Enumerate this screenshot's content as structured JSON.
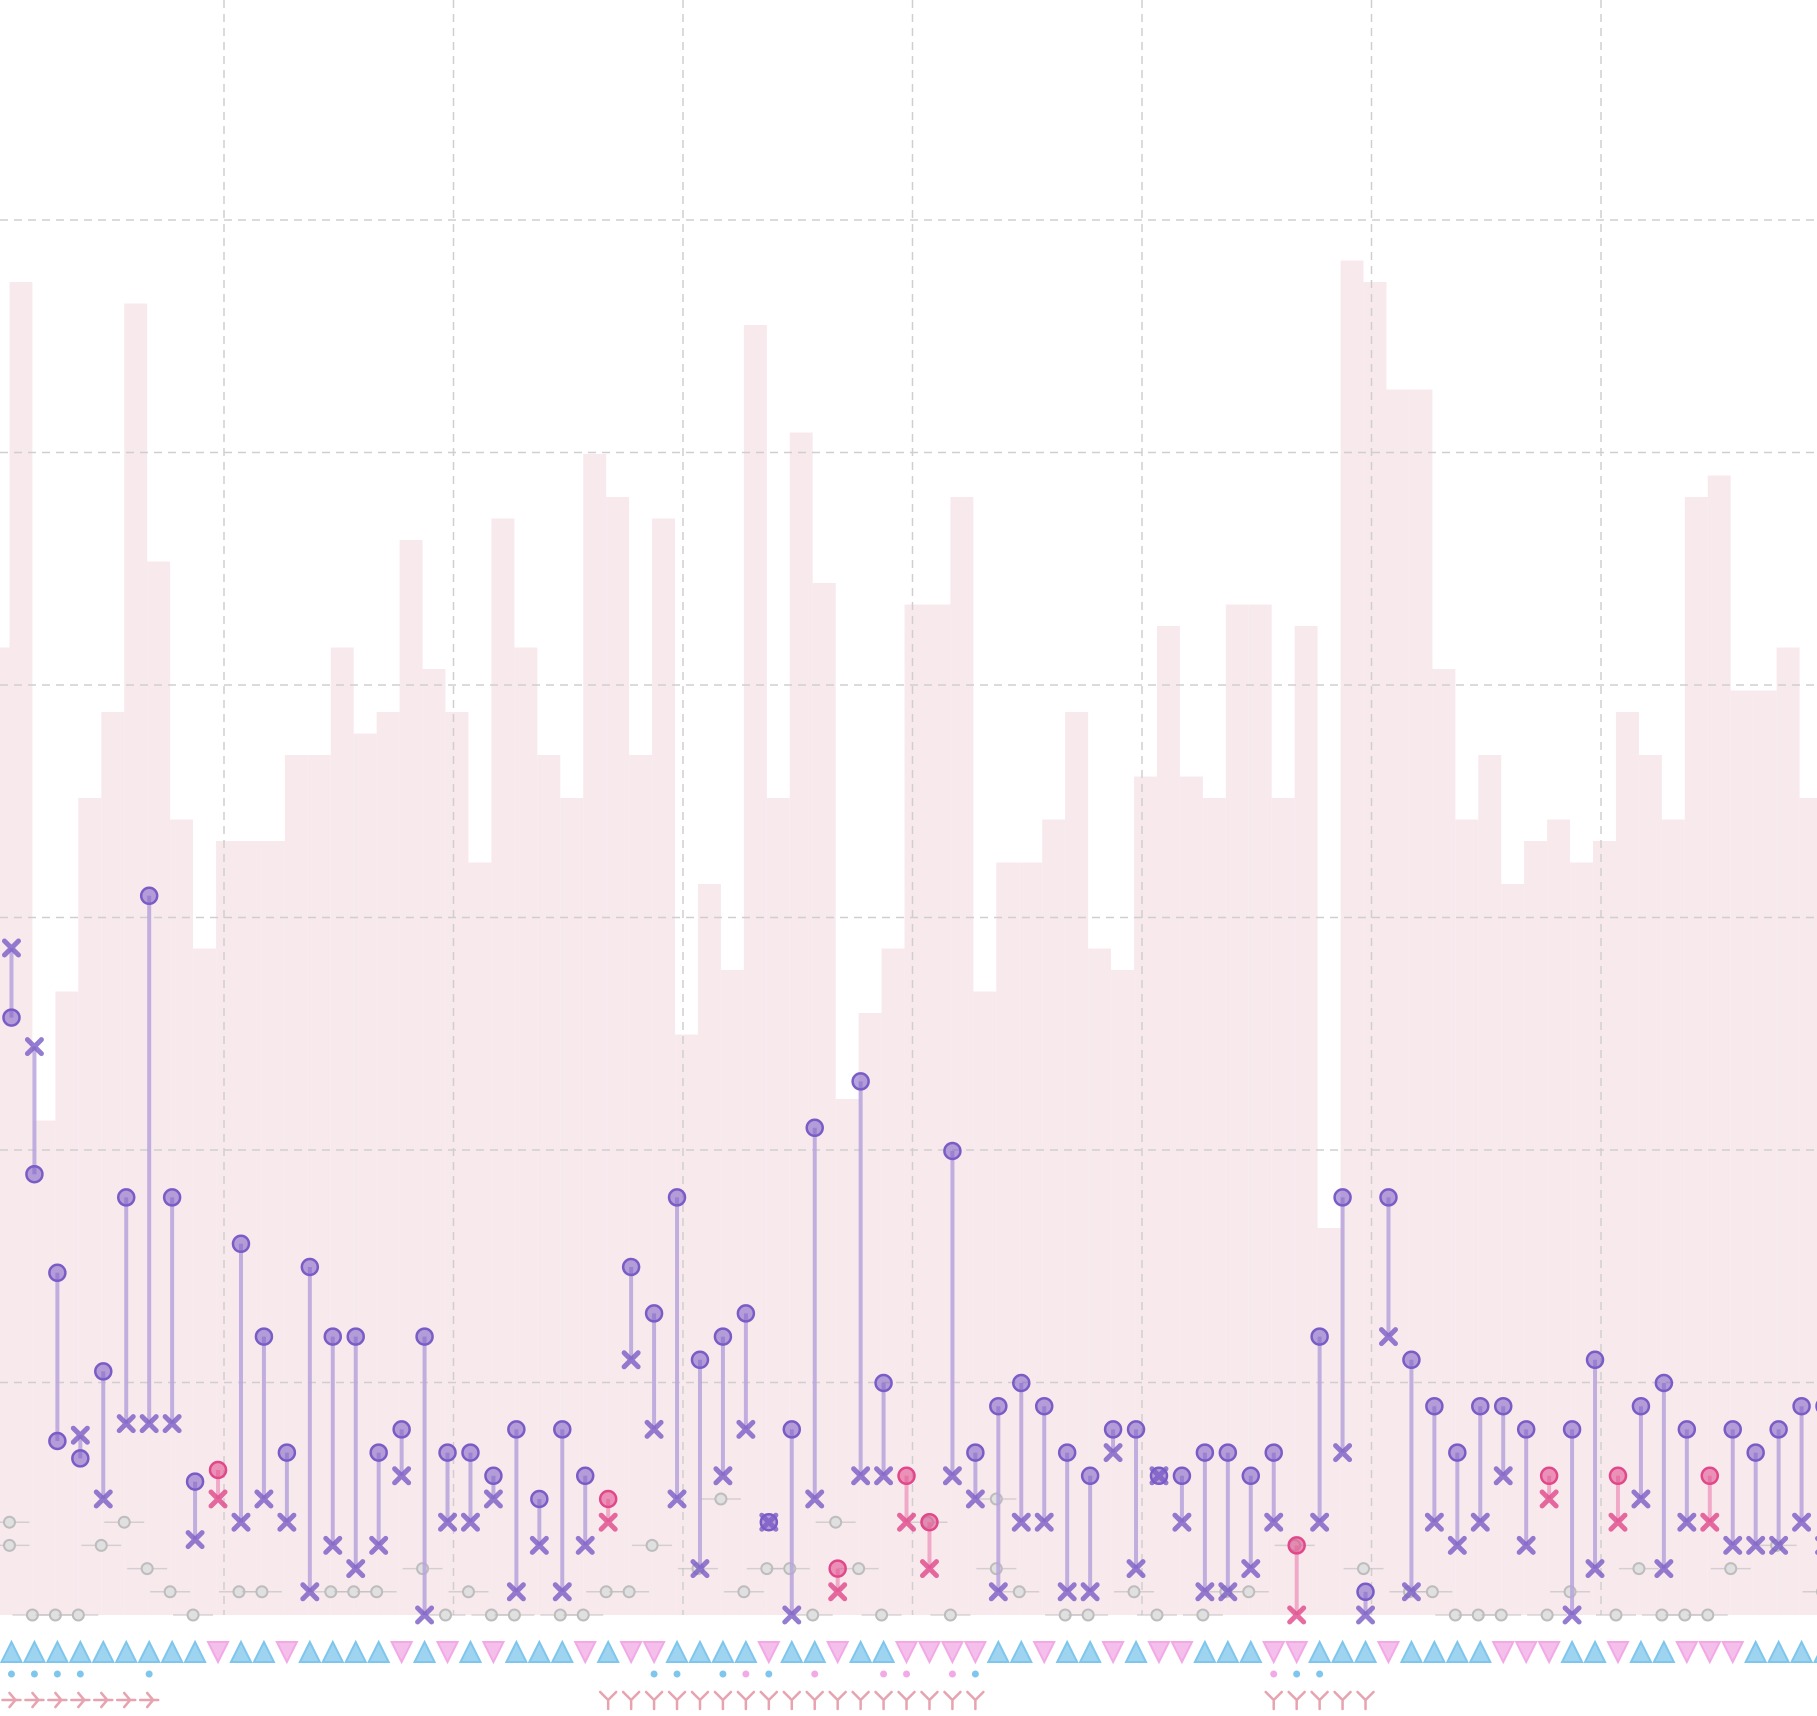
{
  "chart_data": {
    "type": "bar",
    "description_note": "",
    "x_count": 80,
    "grid": "on",
    "colors": {
      "background_bars": "#f8e9ed",
      "grid": "#cfcfcf",
      "purple_series": "#7a5cc6",
      "purple_line": "#b8a4dc",
      "pink_series": "#e0488a",
      "pink_line": "#efa0c2",
      "grey_series": "#bdbdbd",
      "triangle_blue": "#7fc6ec",
      "triangle_pink": "#f2a9e6",
      "dot_blue": "#7fc6ec",
      "dot_pink": "#f2a9e6",
      "tick_marks": "#e7a3b0"
    },
    "background_bars": [
      45,
      62,
      23,
      29,
      38,
      42,
      61,
      49,
      37,
      31,
      36,
      36,
      36,
      40,
      40,
      45,
      41,
      42,
      50,
      44,
      42,
      35,
      51,
      45,
      40,
      38,
      54,
      52,
      40,
      51,
      27,
      34,
      30,
      60,
      38,
      55,
      48,
      24,
      28,
      31,
      47,
      47,
      52,
      29,
      35,
      35,
      37,
      42,
      31,
      30,
      39,
      46,
      39,
      38,
      47,
      47,
      38,
      46,
      18,
      63,
      62,
      57,
      57,
      44,
      37,
      40,
      34,
      36,
      37,
      35,
      36,
      42,
      40,
      37,
      52,
      53,
      43,
      43,
      45,
      38
    ],
    "stems": [
      {
        "x": 0,
        "top": 1030,
        "bottom": 1150,
        "series": "purple"
      },
      {
        "x": 1,
        "top": 760,
        "bottom": 980,
        "series": "purple"
      },
      {
        "x": 2,
        "top": 590,
        "bottom": 300,
        "series": "purple",
        "bottom_shape": "circle"
      },
      {
        "x": 3,
        "top": 270,
        "bottom": 310,
        "series": "purple"
      },
      {
        "x": 4,
        "top": 420,
        "bottom": 200,
        "series": "purple",
        "bottom_shape": "x"
      },
      {
        "x": 5,
        "top": 720,
        "bottom": 330,
        "series": "purple"
      },
      {
        "x": 6,
        "top": 1240,
        "bottom": 330,
        "series": "purple"
      },
      {
        "x": 7,
        "top": 720,
        "bottom": 330,
        "series": "purple"
      },
      {
        "x": 8,
        "top": 230,
        "bottom": 130,
        "series": "purple"
      },
      {
        "x": 9,
        "top": 200,
        "bottom": 250,
        "series": "pink"
      },
      {
        "x": 10,
        "top": 640,
        "bottom": 160,
        "series": "purple"
      },
      {
        "x": 11,
        "top": 480,
        "bottom": 200,
        "series": "purple"
      },
      {
        "x": 12,
        "top": 280,
        "bottom": 160,
        "series": "purple"
      },
      {
        "x": 13,
        "top": 600,
        "bottom": 40,
        "series": "purple"
      },
      {
        "x": 14,
        "top": 480,
        "bottom": 120,
        "series": "purple"
      },
      {
        "x": 15,
        "top": 480,
        "bottom": 80,
        "series": "purple"
      },
      {
        "x": 16,
        "top": 280,
        "bottom": 120,
        "series": "purple"
      },
      {
        "x": 17,
        "top": 320,
        "bottom": 240,
        "series": "purple"
      },
      {
        "x": 18,
        "top": 480,
        "bottom": 0,
        "series": "purple"
      },
      {
        "x": 19,
        "top": 280,
        "bottom": 160,
        "series": "purple"
      },
      {
        "x": 20,
        "top": 280,
        "bottom": 160,
        "series": "purple"
      },
      {
        "x": 21,
        "top": 240,
        "bottom": 200,
        "series": "purple"
      },
      {
        "x": 22,
        "top": 320,
        "bottom": 40,
        "series": "purple"
      },
      {
        "x": 23,
        "top": 200,
        "bottom": 120,
        "series": "purple"
      },
      {
        "x": 24,
        "top": 320,
        "bottom": 40,
        "series": "purple"
      },
      {
        "x": 25,
        "top": 240,
        "bottom": 120,
        "series": "purple"
      },
      {
        "x": 26,
        "top": 160,
        "bottom": 200,
        "series": "pink"
      },
      {
        "x": 27,
        "top": 600,
        "bottom": 440,
        "series": "purple"
      },
      {
        "x": 28,
        "top": 520,
        "bottom": 320,
        "series": "purple"
      },
      {
        "x": 29,
        "top": 720,
        "bottom": 200,
        "series": "purple"
      },
      {
        "x": 30,
        "top": 440,
        "bottom": 80,
        "series": "purple"
      },
      {
        "x": 31,
        "top": 480,
        "bottom": 240,
        "series": "purple"
      },
      {
        "x": 32,
        "top": 520,
        "bottom": 320,
        "series": "purple"
      },
      {
        "x": 33,
        "top": 160,
        "bottom": 160,
        "series": "purple"
      },
      {
        "x": 34,
        "top": 320,
        "bottom": 0,
        "series": "purple"
      },
      {
        "x": 35,
        "top": 840,
        "bottom": 200,
        "series": "purple"
      },
      {
        "x": 36,
        "top": 40,
        "bottom": 80,
        "series": "pink"
      },
      {
        "x": 37,
        "top": 920,
        "bottom": 240,
        "series": "purple"
      },
      {
        "x": 38,
        "top": 400,
        "bottom": 240,
        "series": "purple"
      },
      {
        "x": 39,
        "top": 160,
        "bottom": 240,
        "series": "pink"
      },
      {
        "x": 40,
        "top": 80,
        "bottom": 160,
        "series": "pink"
      },
      {
        "x": 41,
        "top": 800,
        "bottom": 240,
        "series": "purple"
      },
      {
        "x": 42,
        "top": 280,
        "bottom": 200,
        "series": "purple"
      },
      {
        "x": 43,
        "top": 360,
        "bottom": 40,
        "series": "purple"
      },
      {
        "x": 44,
        "top": 400,
        "bottom": 160,
        "series": "purple"
      },
      {
        "x": 45,
        "top": 360,
        "bottom": 160,
        "series": "purple"
      },
      {
        "x": 46,
        "top": 280,
        "bottom": 40,
        "series": "purple"
      },
      {
        "x": 47,
        "top": 240,
        "bottom": 40,
        "series": "purple"
      },
      {
        "x": 48,
        "top": 320,
        "bottom": 280,
        "series": "purple"
      },
      {
        "x": 49,
        "top": 320,
        "bottom": 80,
        "series": "purple"
      },
      {
        "x": 50,
        "top": 240,
        "bottom": 240,
        "series": "purple"
      },
      {
        "x": 51,
        "top": 240,
        "bottom": 160,
        "series": "purple"
      },
      {
        "x": 52,
        "top": 280,
        "bottom": 40,
        "series": "purple"
      },
      {
        "x": 53,
        "top": 280,
        "bottom": 40,
        "series": "purple"
      },
      {
        "x": 54,
        "top": 240,
        "bottom": 80,
        "series": "purple"
      },
      {
        "x": 55,
        "top": 280,
        "bottom": 160,
        "series": "purple"
      },
      {
        "x": 56,
        "top": 0,
        "bottom": 120,
        "series": "pink"
      },
      {
        "x": 57,
        "top": 480,
        "bottom": 160,
        "series": "purple"
      },
      {
        "x": 58,
        "top": 720,
        "bottom": 280,
        "series": "purple"
      },
      {
        "x": 59,
        "top": 40,
        "bottom": 0,
        "series": "purple"
      },
      {
        "x": 60,
        "top": 720,
        "bottom": 480,
        "series": "purple"
      },
      {
        "x": 61,
        "top": 440,
        "bottom": 40,
        "series": "purple"
      },
      {
        "x": 62,
        "top": 360,
        "bottom": 160,
        "series": "purple"
      },
      {
        "x": 63,
        "top": 280,
        "bottom": 120,
        "series": "purple"
      },
      {
        "x": 64,
        "top": 360,
        "bottom": 160,
        "series": "purple"
      },
      {
        "x": 65,
        "top": 360,
        "bottom": 240,
        "series": "purple"
      },
      {
        "x": 66,
        "top": 320,
        "bottom": 120,
        "series": "purple"
      },
      {
        "x": 67,
        "top": 200,
        "bottom": 240,
        "series": "pink"
      },
      {
        "x": 68,
        "top": 320,
        "bottom": 0,
        "series": "purple"
      },
      {
        "x": 69,
        "top": 440,
        "bottom": 80,
        "series": "purple"
      },
      {
        "x": 70,
        "top": 160,
        "bottom": 240,
        "series": "pink"
      },
      {
        "x": 71,
        "top": 360,
        "bottom": 200,
        "series": "purple"
      },
      {
        "x": 72,
        "top": 400,
        "bottom": 80,
        "series": "purple"
      },
      {
        "x": 73,
        "top": 320,
        "bottom": 160,
        "series": "purple"
      },
      {
        "x": 74,
        "top": 160,
        "bottom": 240,
        "series": "pink"
      },
      {
        "x": 75,
        "top": 320,
        "bottom": 120,
        "series": "purple"
      },
      {
        "x": 76,
        "top": 280,
        "bottom": 120,
        "series": "purple"
      },
      {
        "x": 77,
        "top": 320,
        "bottom": 120,
        "series": "purple"
      },
      {
        "x": 78,
        "top": 360,
        "bottom": 160,
        "series": "purple"
      },
      {
        "x": 79,
        "top": 360,
        "bottom": 120,
        "series": "purple"
      }
    ],
    "grey_points": [
      {
        "x": 0,
        "y": 160
      },
      {
        "x": 0,
        "y": 120
      },
      {
        "x": 1,
        "y": 0
      },
      {
        "x": 2,
        "y": 0
      },
      {
        "x": 3,
        "y": 0
      },
      {
        "x": 4,
        "y": 120
      },
      {
        "x": 5,
        "y": 160
      },
      {
        "x": 6,
        "y": 80
      },
      {
        "x": 7,
        "y": 40
      },
      {
        "x": 8,
        "y": 0
      },
      {
        "x": 10,
        "y": 40
      },
      {
        "x": 11,
        "y": 40
      },
      {
        "x": 14,
        "y": 40
      },
      {
        "x": 15,
        "y": 40
      },
      {
        "x": 16,
        "y": 40
      },
      {
        "x": 18,
        "y": 80
      },
      {
        "x": 19,
        "y": 0
      },
      {
        "x": 20,
        "y": 40
      },
      {
        "x": 21,
        "y": 0
      },
      {
        "x": 22,
        "y": 0
      },
      {
        "x": 24,
        "y": 0
      },
      {
        "x": 25,
        "y": 0
      },
      {
        "x": 26,
        "y": 40
      },
      {
        "x": 27,
        "y": 40
      },
      {
        "x": 28,
        "y": 120
      },
      {
        "x": 30,
        "y": 80
      },
      {
        "x": 31,
        "y": 200
      },
      {
        "x": 32,
        "y": 40
      },
      {
        "x": 33,
        "y": 80
      },
      {
        "x": 34,
        "y": 80
      },
      {
        "x": 35,
        "y": 0
      },
      {
        "x": 36,
        "y": 160
      },
      {
        "x": 37,
        "y": 80
      },
      {
        "x": 38,
        "y": 0
      },
      {
        "x": 40,
        "y": 160
      },
      {
        "x": 41,
        "y": 0
      },
      {
        "x": 43,
        "y": 200
      },
      {
        "x": 43,
        "y": 80
      },
      {
        "x": 44,
        "y": 40
      },
      {
        "x": 46,
        "y": 0
      },
      {
        "x": 47,
        "y": 0
      },
      {
        "x": 49,
        "y": 40
      },
      {
        "x": 50,
        "y": 0
      },
      {
        "x": 52,
        "y": 0
      },
      {
        "x": 53,
        "y": 40
      },
      {
        "x": 54,
        "y": 40
      },
      {
        "x": 56,
        "y": 120
      },
      {
        "x": 59,
        "y": 80
      },
      {
        "x": 61,
        "y": 40
      },
      {
        "x": 62,
        "y": 40
      },
      {
        "x": 63,
        "y": 0
      },
      {
        "x": 64,
        "y": 0
      },
      {
        "x": 65,
        "y": 0
      },
      {
        "x": 67,
        "y": 0
      },
      {
        "x": 68,
        "y": 40
      },
      {
        "x": 70,
        "y": 0
      },
      {
        "x": 71,
        "y": 80
      },
      {
        "x": 72,
        "y": 0
      },
      {
        "x": 73,
        "y": 0
      },
      {
        "x": 74,
        "y": 0
      },
      {
        "x": 75,
        "y": 80
      },
      {
        "x": 77,
        "y": 120
      },
      {
        "x": 79,
        "y": 40
      }
    ],
    "triangle_row": [
      "up",
      "up",
      "up",
      "up",
      "up",
      "up",
      "up",
      "up",
      "up",
      "down",
      "up",
      "up",
      "down",
      "up",
      "up",
      "up",
      "up",
      "down",
      "up",
      "down",
      "up",
      "down",
      "up",
      "up",
      "up",
      "down",
      "up",
      "down",
      "down",
      "up",
      "up",
      "up",
      "up",
      "down",
      "up",
      "up",
      "down",
      "up",
      "up",
      "down",
      "down",
      "down",
      "down",
      "up",
      "up",
      "down",
      "up",
      "up",
      "down",
      "up",
      "down",
      "down",
      "up",
      "up",
      "up",
      "down",
      "down",
      "up",
      "up",
      "up",
      "down",
      "up",
      "up",
      "up",
      "up",
      "down",
      "down",
      "down",
      "up",
      "up",
      "down",
      "up",
      "up",
      "down",
      "down",
      "down",
      "up",
      "up",
      "up",
      "up"
    ],
    "triangle_colors": [
      "blue",
      "blue",
      "blue",
      "blue",
      "blue",
      "blue",
      "blue",
      "blue",
      "blue",
      "pink",
      "blue",
      "blue",
      "pink",
      "blue",
      "blue",
      "blue",
      "blue",
      "pink",
      "blue",
      "pink",
      "blue",
      "pink",
      "blue",
      "blue",
      "blue",
      "pink",
      "blue",
      "pink",
      "pink",
      "blue",
      "blue",
      "blue",
      "blue",
      "pink",
      "blue",
      "blue",
      "pink",
      "blue",
      "blue",
      "pink",
      "pink",
      "pink",
      "pink",
      "blue",
      "blue",
      "pink",
      "blue",
      "blue",
      "pink",
      "blue",
      "pink",
      "pink",
      "blue",
      "blue",
      "blue",
      "pink",
      "pink",
      "blue",
      "blue",
      "blue",
      "pink",
      "blue",
      "blue",
      "blue",
      "blue",
      "pink",
      "pink",
      "pink",
      "blue",
      "blue",
      "pink",
      "blue",
      "blue",
      "pink",
      "pink",
      "pink",
      "blue",
      "blue",
      "blue",
      "blue"
    ],
    "dot_row": [
      {
        "x": 0,
        "color": "blue"
      },
      {
        "x": 1,
        "color": "blue"
      },
      {
        "x": 2,
        "color": "blue"
      },
      {
        "x": 3,
        "color": "blue"
      },
      {
        "x": 6,
        "color": "blue"
      },
      {
        "x": 28,
        "color": "blue"
      },
      {
        "x": 29,
        "color": "blue"
      },
      {
        "x": 31,
        "color": "blue"
      },
      {
        "x": 32,
        "color": "pink"
      },
      {
        "x": 33,
        "color": "blue"
      },
      {
        "x": 35,
        "color": "pink"
      },
      {
        "x": 38,
        "color": "pink"
      },
      {
        "x": 39,
        "color": "pink"
      },
      {
        "x": 41,
        "color": "pink"
      },
      {
        "x": 42,
        "color": "blue"
      },
      {
        "x": 55,
        "color": "pink"
      },
      {
        "x": 56,
        "color": "blue"
      },
      {
        "x": 57,
        "color": "blue"
      }
    ],
    "tick_row": [
      {
        "from": 0,
        "to": 6,
        "shape": "right-chevron"
      },
      {
        "from": 26,
        "to": 42,
        "shape": "y"
      },
      {
        "from": 55,
        "to": 59,
        "shape": "y"
      }
    ]
  }
}
